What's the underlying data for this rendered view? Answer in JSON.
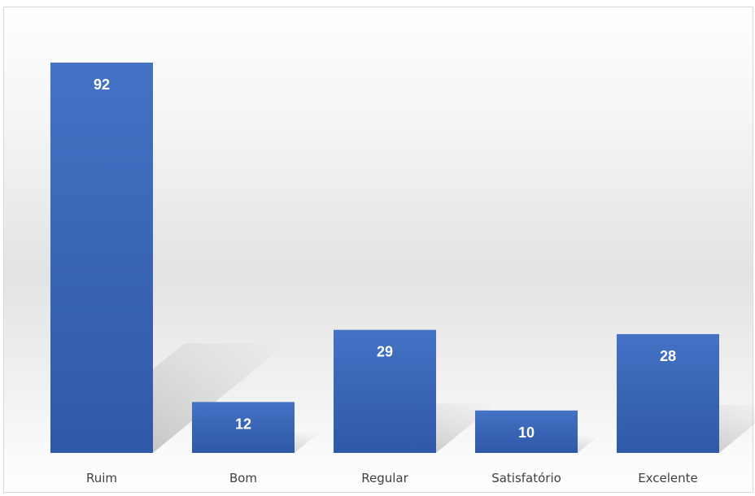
{
  "chart_data": {
    "type": "bar",
    "title": "",
    "xlabel": "",
    "ylabel": "",
    "categories": [
      "Ruim",
      "Bom",
      "Regular",
      "Satisfatório",
      "Excelente"
    ],
    "values": [
      92,
      12,
      29,
      10,
      28
    ],
    "data_labels": [
      "92",
      "12",
      "29",
      "10",
      "28"
    ],
    "ylim": [
      0,
      92
    ],
    "grid": false,
    "legend": "none",
    "bar_color": "#3d68c0",
    "bar_color_dark": "#2b4f9d"
  }
}
